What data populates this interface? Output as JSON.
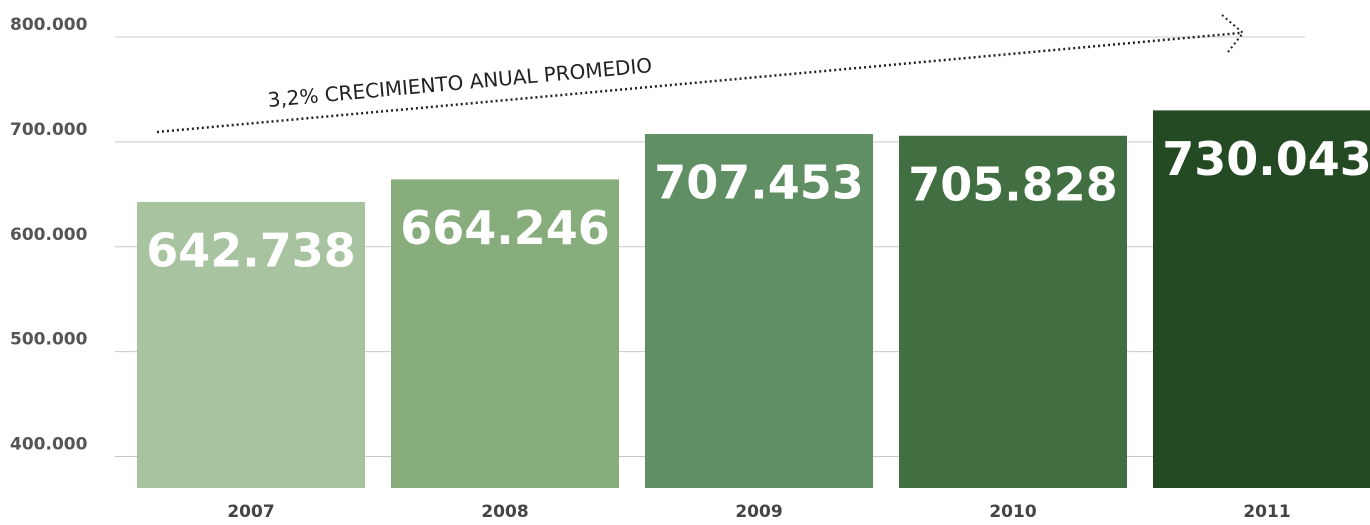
{
  "chart_data": {
    "type": "bar",
    "annotation": "3,2% CRECIMIENTO ANUAL PROMEDIO",
    "categories": [
      "2007",
      "2008",
      "2009",
      "2010",
      "2011"
    ],
    "values": [
      642738,
      664246,
      707453,
      705828,
      730043
    ],
    "value_labels": [
      "642.738",
      "664.246",
      "707.453",
      "705.828",
      "730.043"
    ],
    "colors": [
      "#a8c39f",
      "#87ad7c",
      "#5f8f63",
      "#426f41",
      "#244a24"
    ],
    "ylim": [
      370000,
      800000
    ],
    "yticks": [
      {
        "value": 400000,
        "label": "400.000"
      },
      {
        "value": 500000,
        "label": "500.000"
      },
      {
        "value": 600000,
        "label": "600.000"
      },
      {
        "value": 700000,
        "label": "700.000"
      },
      {
        "value": 800000,
        "label": "800.000"
      }
    ],
    "grid": true
  }
}
